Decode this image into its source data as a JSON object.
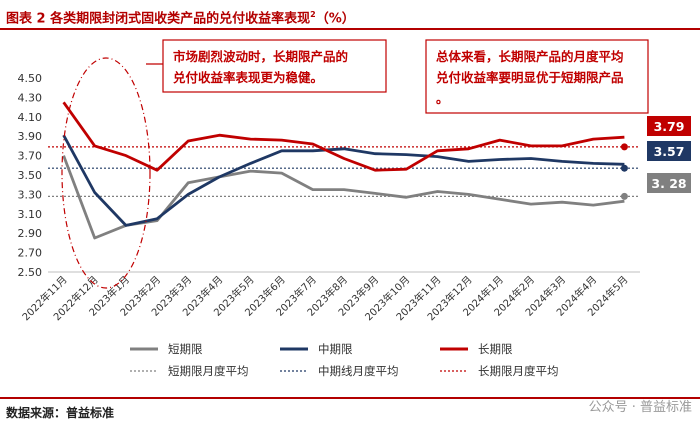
{
  "header": {
    "title": "图表 2 各类期限封闭式固收类产品的兑付收益率表现",
    "title_sup": "2",
    "title_unit": "（%）"
  },
  "footer": {
    "source": "数据来源：普益标准",
    "watermark": "公众号 · 普益标准"
  },
  "chart_data": {
    "type": "line",
    "categories": [
      "2022年11月",
      "2022年12月",
      "2023年1月",
      "2023年2月",
      "2023年3月",
      "2023年4月",
      "2023年5月",
      "2023年6月",
      "2023年7月",
      "2023年8月",
      "2023年9月",
      "2023年10月",
      "2023年11月",
      "2023年12月",
      "2024年1月",
      "2024年2月",
      "2024年3月",
      "2024年4月",
      "2024年5月"
    ],
    "ylim": [
      2.5,
      4.5
    ],
    "yticks": [
      "2.50",
      "2.70",
      "2.90",
      "3.10",
      "3.30",
      "3.50",
      "3.70",
      "3.90",
      "4.10",
      "4.30",
      "4.50"
    ],
    "grid": false,
    "series": [
      {
        "name": "短期限",
        "color": "#808080",
        "values": [
          3.7,
          2.85,
          2.98,
          3.03,
          3.42,
          3.48,
          3.54,
          3.52,
          3.35,
          3.35,
          3.31,
          3.27,
          3.33,
          3.3,
          3.25,
          3.2,
          3.22,
          3.19,
          3.23
        ]
      },
      {
        "name": "中期限",
        "color": "#1f3864",
        "values": [
          3.91,
          3.32,
          2.98,
          3.05,
          3.3,
          3.48,
          3.62,
          3.75,
          3.75,
          3.77,
          3.72,
          3.71,
          3.69,
          3.64,
          3.66,
          3.67,
          3.64,
          3.62,
          3.61
        ]
      },
      {
        "name": "长期限",
        "color": "#c00000",
        "values": [
          4.25,
          3.8,
          3.7,
          3.55,
          3.85,
          3.91,
          3.87,
          3.86,
          3.82,
          3.67,
          3.55,
          3.56,
          3.75,
          3.77,
          3.86,
          3.8,
          3.8,
          3.87,
          3.89
        ]
      }
    ],
    "averages": [
      {
        "name": "短期限月度平均",
        "value": 3.28,
        "color": "#808080"
      },
      {
        "name": "中期线月度平均",
        "value": 3.57,
        "color": "#1f3864"
      },
      {
        "name": "长期限月度平均",
        "value": 3.79,
        "color": "#c00000"
      }
    ],
    "avg_labels": [
      {
        "text": "3.79",
        "color": "#c00000"
      },
      {
        "text": "3.57",
        "color": "#1f3864"
      },
      {
        "text": "3. 28",
        "color": "#808080"
      }
    ],
    "annotations": [
      "市场剧烈波动时，长期限产品的兑付收益率表现更为稳健。",
      "总体来看，长期限产品的月度平均兑付收益率要明显优于短期限产品。"
    ]
  }
}
